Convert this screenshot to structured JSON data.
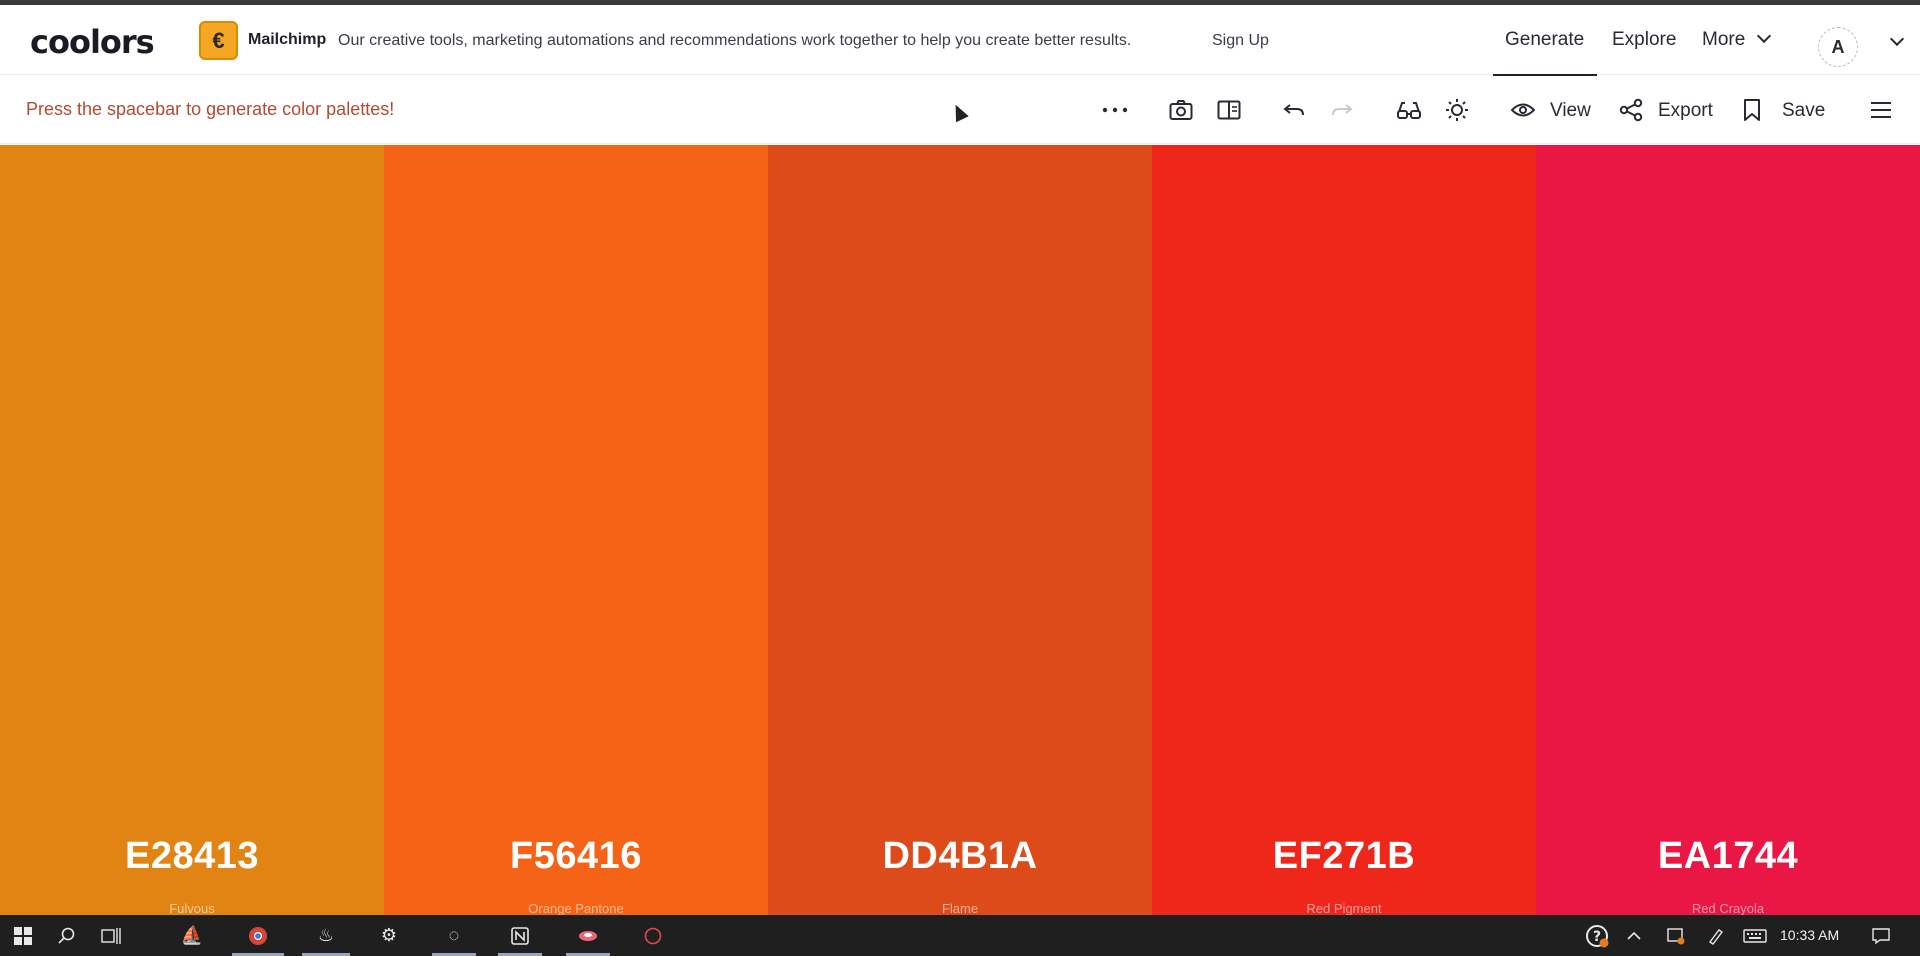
{
  "header": {
    "logo": "coolors",
    "ad": {
      "brand": "Mailchimp",
      "text": "Our creative tools, marketing automations and recommendations work together to help you create better results.",
      "cta": "Sign Up"
    },
    "nav": {
      "generate": "Generate",
      "explore": "Explore",
      "more": "More"
    },
    "avatar_initial": "A"
  },
  "toolbar": {
    "hint": "Press the spacebar to generate color palettes!",
    "view_label": "View",
    "export_label": "Export",
    "save_label": "Save",
    "icons": [
      "more-options-icon",
      "camera-icon",
      "sidebar-view-icon",
      "undo-icon",
      "redo-icon",
      "glasses-icon",
      "brightness-icon",
      "eye-icon",
      "share-icon",
      "bookmark-icon",
      "menu-icon"
    ]
  },
  "palette": [
    {
      "hex": "E28413",
      "name": "Fulvous",
      "color": "#E28413"
    },
    {
      "hex": "F56416",
      "name": "Orange Pantone",
      "color": "#F56416"
    },
    {
      "hex": "DD4B1A",
      "name": "Flame",
      "color": "#DD4B1A"
    },
    {
      "hex": "EF271B",
      "name": "Red Pigment",
      "color": "#EF271B"
    },
    {
      "hex": "EA1744",
      "name": "Red Crayola",
      "color": "#EA1744"
    }
  ],
  "taskbar": {
    "time": "10:33 AM",
    "icons": [
      "windows-start-icon",
      "search-icon",
      "task-view-icon",
      "app-icon",
      "chrome-icon",
      "steam-icon",
      "settings-icon",
      "app-icon",
      "notion-icon",
      "app-icon",
      "app-icon"
    ]
  }
}
